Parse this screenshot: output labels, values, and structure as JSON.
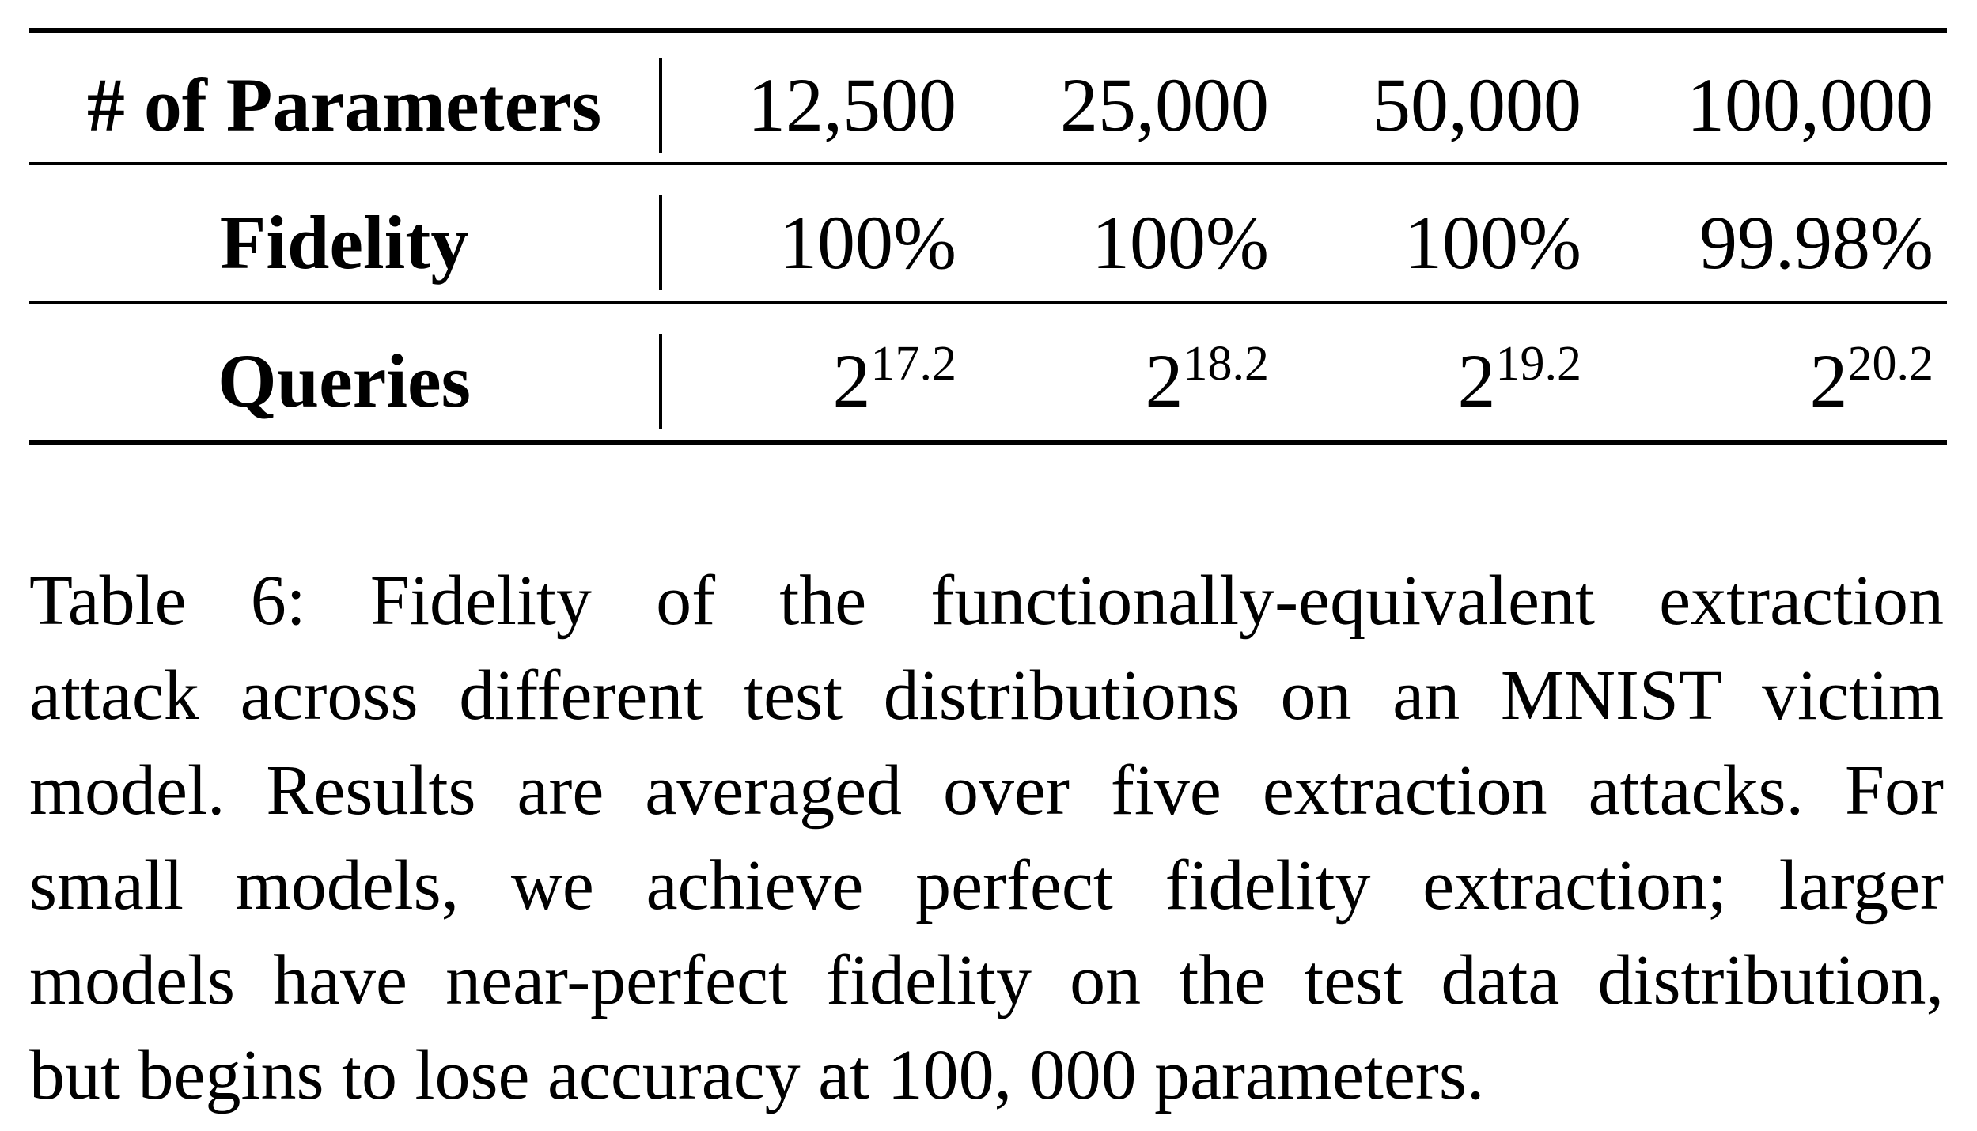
{
  "table": {
    "header_row": {
      "label": "# of Parameters",
      "values": [
        "12,500",
        "25,000",
        "50,000",
        "100,000"
      ]
    },
    "fidelity_row": {
      "label": "Fidelity",
      "values": [
        "100%",
        "100%",
        "100%",
        "99.98%"
      ]
    },
    "queries_row": {
      "label": "Queries",
      "values": [
        {
          "base": "2",
          "exp": "17.2"
        },
        {
          "base": "2",
          "exp": "18.2"
        },
        {
          "base": "2",
          "exp": "19.2"
        },
        {
          "base": "2",
          "exp": "20.2"
        }
      ]
    }
  },
  "caption": {
    "lines": [
      "Table 6: Fidelity of the functionally-equivalent extraction",
      "attack across different test distributions on an MNIST victim",
      "model. Results are averaged over five extraction attacks. For",
      "small models, we achieve perfect fidelity extraction; larger",
      "models have near-perfect fidelity on the test data distribution,",
      "but begins to lose accuracy at 100, 000 parameters."
    ]
  }
}
